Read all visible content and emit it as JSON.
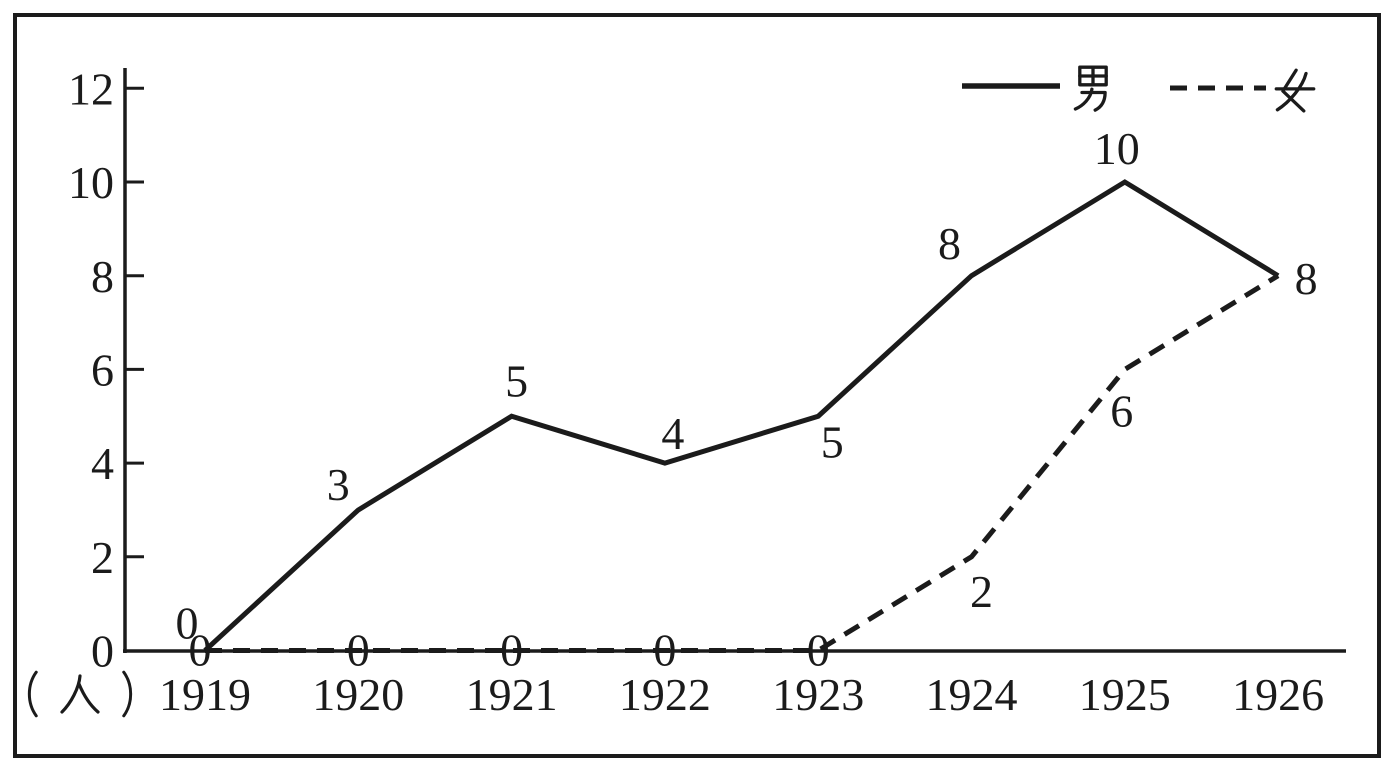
{
  "chart_data": {
    "type": "line",
    "x": [
      1919,
      1920,
      1921,
      1922,
      1923,
      1924,
      1925,
      1926
    ],
    "series": [
      {
        "name": "男",
        "line_style": "solid",
        "values": [
          0,
          3,
          5,
          4,
          5,
          8,
          10,
          8
        ],
        "point_labels": [
          "0",
          "3",
          "5",
          "4",
          "5",
          "8",
          "10",
          "8"
        ]
      },
      {
        "name": "女",
        "line_style": "dashed",
        "values": [
          0,
          0,
          0,
          0,
          0,
          2,
          6,
          8
        ],
        "point_labels": [
          "0",
          "0",
          "0",
          "0",
          "0",
          "2",
          "6",
          ""
        ]
      }
    ],
    "title": "",
    "xlabel": "",
    "ylabel": "(人)",
    "ylim": [
      0,
      12
    ],
    "yticks": [
      0,
      2,
      4,
      6,
      8,
      10,
      12
    ],
    "ytick_labels": [
      "0",
      "2",
      "4",
      "6",
      "8",
      "10",
      "12"
    ],
    "grid": false,
    "legend_position": "top-right",
    "legend": [
      {
        "label": "男",
        "swatch": "solid-line"
      },
      {
        "label": "女",
        "swatch": "dashed-line"
      }
    ],
    "colors": {
      "ink": "#1b1b1b",
      "background": "#ffffff"
    }
  }
}
